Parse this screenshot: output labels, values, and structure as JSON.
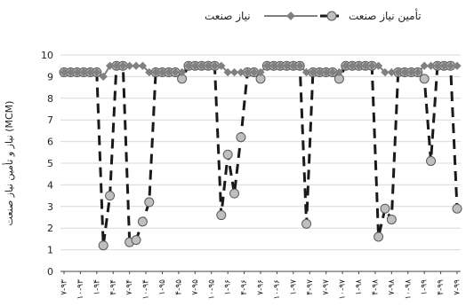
{
  "chart_data": {
    "type": "line",
    "ylabel": "نیاز و تأمین نیاز صنعت (MCM)",
    "ylim": [
      0,
      10
    ],
    "yticks": [
      "0",
      "1",
      "2",
      "3",
      "4",
      "5",
      "6",
      "7",
      "8",
      "9",
      "10"
    ],
    "legend_position": "top",
    "grid": "horizontal",
    "x_tick_labels": [
      "۷-۹۳",
      "۱۰-۹۳",
      "۱-۹۴",
      "۴-۹۴",
      "۷-۹۴",
      "۱۰-۹۴",
      "۱-۹۵",
      "۴-۹۵",
      "۷-۹۵",
      "۱۰-۹۵",
      "۱-۹۶",
      "۴-۹۶",
      "۷-۹۶",
      "۱۰-۹۶",
      "۱-۹۷",
      "۴-۹۷",
      "۷-۹۷",
      "۱۰-۹۷",
      "۱-۹۸",
      "۴-۹۸",
      "۷-۹۸",
      "۱۰-۹۸",
      "۱-۹۹",
      "۴-۹۹",
      "۷-۹۹"
    ],
    "series": [
      {
        "name": "نیاز صنعت",
        "color": "#808080",
        "marker": "diamond",
        "line": "solid",
        "values": [
          9.2,
          9.2,
          9.2,
          9.2,
          9.2,
          9.2,
          9.0,
          9.5,
          9.5,
          9.5,
          9.5,
          9.5,
          9.5,
          9.2,
          9.2,
          9.2,
          9.2,
          9.2,
          9.2,
          9.5,
          9.5,
          9.5,
          9.5,
          9.5,
          9.5,
          9.2,
          9.2,
          9.2,
          9.2,
          9.2,
          9.2,
          9.5,
          9.5,
          9.5,
          9.5,
          9.5,
          9.5,
          9.2,
          9.2,
          9.2,
          9.2,
          9.2,
          9.2,
          9.5,
          9.5,
          9.5,
          9.5,
          9.5,
          9.5,
          9.2,
          9.2,
          9.2,
          9.2,
          9.2,
          9.2,
          9.5,
          9.5,
          9.5,
          9.5,
          9.5,
          9.5
        ]
      },
      {
        "name": "تأمین نیاز صنعت",
        "color": "#bfbfbf",
        "marker": "circle",
        "line": "dashed",
        "values": [
          9.2,
          9.2,
          9.2,
          9.2,
          9.2,
          9.2,
          1.2,
          3.5,
          9.5,
          9.5,
          1.35,
          1.45,
          2.3,
          3.2,
          9.2,
          9.2,
          9.2,
          9.2,
          8.9,
          9.5,
          9.5,
          9.5,
          9.5,
          9.5,
          2.6,
          5.4,
          3.6,
          6.2,
          9.2,
          9.2,
          8.9,
          9.5,
          9.5,
          9.5,
          9.5,
          9.5,
          9.5,
          2.2,
          9.2,
          9.2,
          9.2,
          9.2,
          8.9,
          9.5,
          9.5,
          9.5,
          9.5,
          9.5,
          1.6,
          2.9,
          2.4,
          9.2,
          9.2,
          9.2,
          9.2,
          8.9,
          5.1,
          9.5,
          9.5,
          9.5,
          2.9
        ]
      }
    ]
  }
}
